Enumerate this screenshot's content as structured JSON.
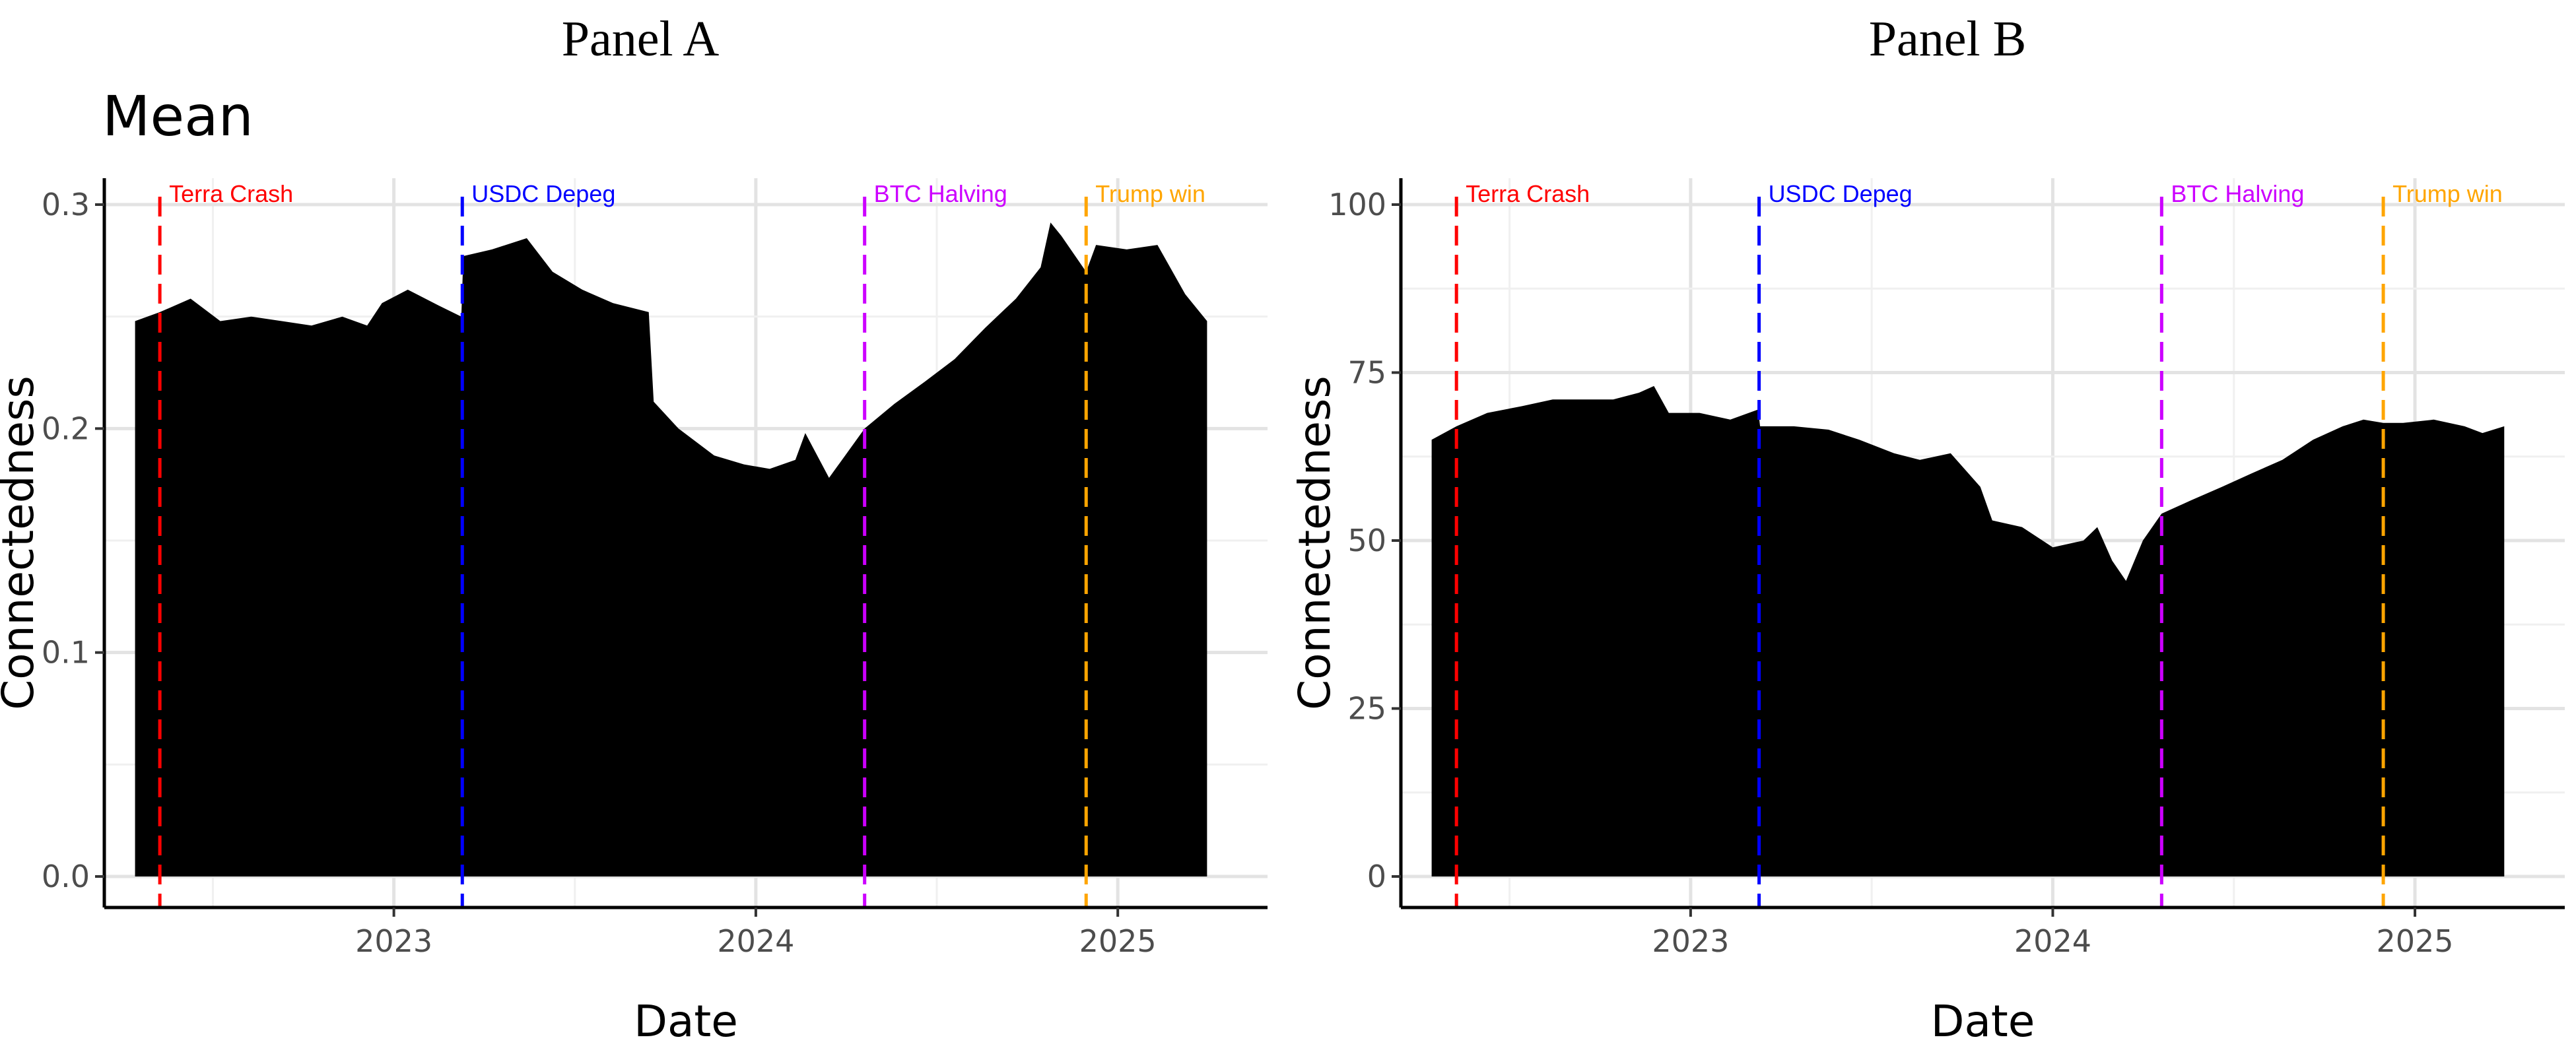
{
  "chart_data": [
    {
      "type": "area",
      "panel_label": "Panel A",
      "subtitle": "Mean",
      "xlabel": "Date",
      "ylabel": "Connectedness",
      "ylim": [
        0,
        0.3
      ],
      "yticks": [
        "0.0",
        "0.1",
        "0.2",
        "0.3"
      ],
      "xticks": [
        "2023",
        "2024",
        "2025"
      ],
      "xlim": [
        "2022-03-15",
        "2025-06-01"
      ],
      "grid": true,
      "fill_color": "#000000",
      "events": [
        {
          "label": "Terra Crash",
          "date": "2022-05-10",
          "color": "#ff0000"
        },
        {
          "label": "USDC Depeg",
          "date": "2023-03-11",
          "color": "#0000ff"
        },
        {
          "label": "BTC Halving",
          "date": "2024-04-20",
          "color": "#cc00ff"
        },
        {
          "label": "Trump win",
          "date": "2024-11-30",
          "color": "#ffa500"
        }
      ],
      "series": [
        {
          "x": [
            "2022-04-15",
            "2022-05-10",
            "2022-06-10",
            "2022-07-10",
            "2022-08-10",
            "2022-09-10",
            "2022-10-10",
            "2022-11-10",
            "2022-12-05",
            "2022-12-20",
            "2023-01-15",
            "2023-02-15",
            "2023-03-10",
            "2023-03-12",
            "2023-04-10",
            "2023-05-15",
            "2023-06-10",
            "2023-07-10",
            "2023-08-10",
            "2023-09-15",
            "2023-09-20",
            "2023-10-15",
            "2023-11-20",
            "2023-12-20",
            "2024-01-15",
            "2024-02-10",
            "2024-02-20",
            "2024-03-15",
            "2024-04-20",
            "2024-05-20",
            "2024-06-20",
            "2024-07-20",
            "2024-08-20",
            "2024-09-20",
            "2024-10-15",
            "2024-10-25",
            "2024-11-05",
            "2024-11-30",
            "2024-12-10",
            "2025-01-10",
            "2025-02-10",
            "2025-03-10",
            "2025-04-01"
          ],
          "values": [
            0.248,
            0.252,
            0.258,
            0.248,
            0.25,
            0.248,
            0.246,
            0.25,
            0.246,
            0.256,
            0.262,
            0.255,
            0.25,
            0.277,
            0.28,
            0.285,
            0.27,
            0.262,
            0.256,
            0.252,
            0.212,
            0.2,
            0.188,
            0.184,
            0.182,
            0.186,
            0.198,
            0.178,
            0.2,
            0.211,
            0.221,
            0.231,
            0.245,
            0.258,
            0.272,
            0.292,
            0.286,
            0.27,
            0.282,
            0.28,
            0.282,
            0.26,
            0.248
          ]
        }
      ]
    },
    {
      "type": "area",
      "panel_label": "Panel B",
      "xlabel": "Date",
      "ylabel": "Connectedness",
      "ylim": [
        0,
        100
      ],
      "yticks": [
        "0",
        "25",
        "50",
        "75",
        "100"
      ],
      "xticks": [
        "2023",
        "2024",
        "2025"
      ],
      "xlim": [
        "2022-03-15",
        "2025-06-01"
      ],
      "grid": true,
      "fill_color": "#000000",
      "events": [
        {
          "label": "Terra Crash",
          "date": "2022-05-10",
          "color": "#ff0000"
        },
        {
          "label": "USDC Depeg",
          "date": "2023-03-11",
          "color": "#0000ff"
        },
        {
          "label": "BTC Halving",
          "date": "2024-04-20",
          "color": "#cc00ff"
        },
        {
          "label": "Trump win",
          "date": "2024-11-30",
          "color": "#ffa500"
        }
      ],
      "series": [
        {
          "x": [
            "2022-04-15",
            "2022-05-10",
            "2022-06-10",
            "2022-07-15",
            "2022-08-15",
            "2022-09-15",
            "2022-10-15",
            "2022-11-10",
            "2022-11-25",
            "2022-12-10",
            "2023-01-10",
            "2023-02-10",
            "2023-03-10",
            "2023-03-12",
            "2023-04-15",
            "2023-05-20",
            "2023-06-20",
            "2023-07-25",
            "2023-08-20",
            "2023-09-20",
            "2023-10-20",
            "2023-11-01",
            "2023-12-01",
            "2024-01-01",
            "2024-02-01",
            "2024-02-15",
            "2024-03-01",
            "2024-03-15",
            "2024-04-01",
            "2024-04-20",
            "2024-05-20",
            "2024-06-20",
            "2024-07-20",
            "2024-08-20",
            "2024-09-20",
            "2024-10-20",
            "2024-11-10",
            "2024-11-30",
            "2024-12-20",
            "2025-01-20",
            "2025-02-20",
            "2025-03-10",
            "2025-04-01"
          ],
          "values": [
            65,
            67,
            69,
            70,
            71,
            71,
            71,
            72,
            73,
            69,
            69,
            68,
            69.5,
            67,
            67,
            66.5,
            65,
            63,
            62,
            63,
            58,
            53,
            52,
            49,
            50,
            52,
            47,
            44,
            50,
            54,
            56,
            58,
            60,
            62,
            65,
            67,
            68,
            67.5,
            67.5,
            68,
            67,
            66,
            67
          ]
        }
      ]
    }
  ]
}
